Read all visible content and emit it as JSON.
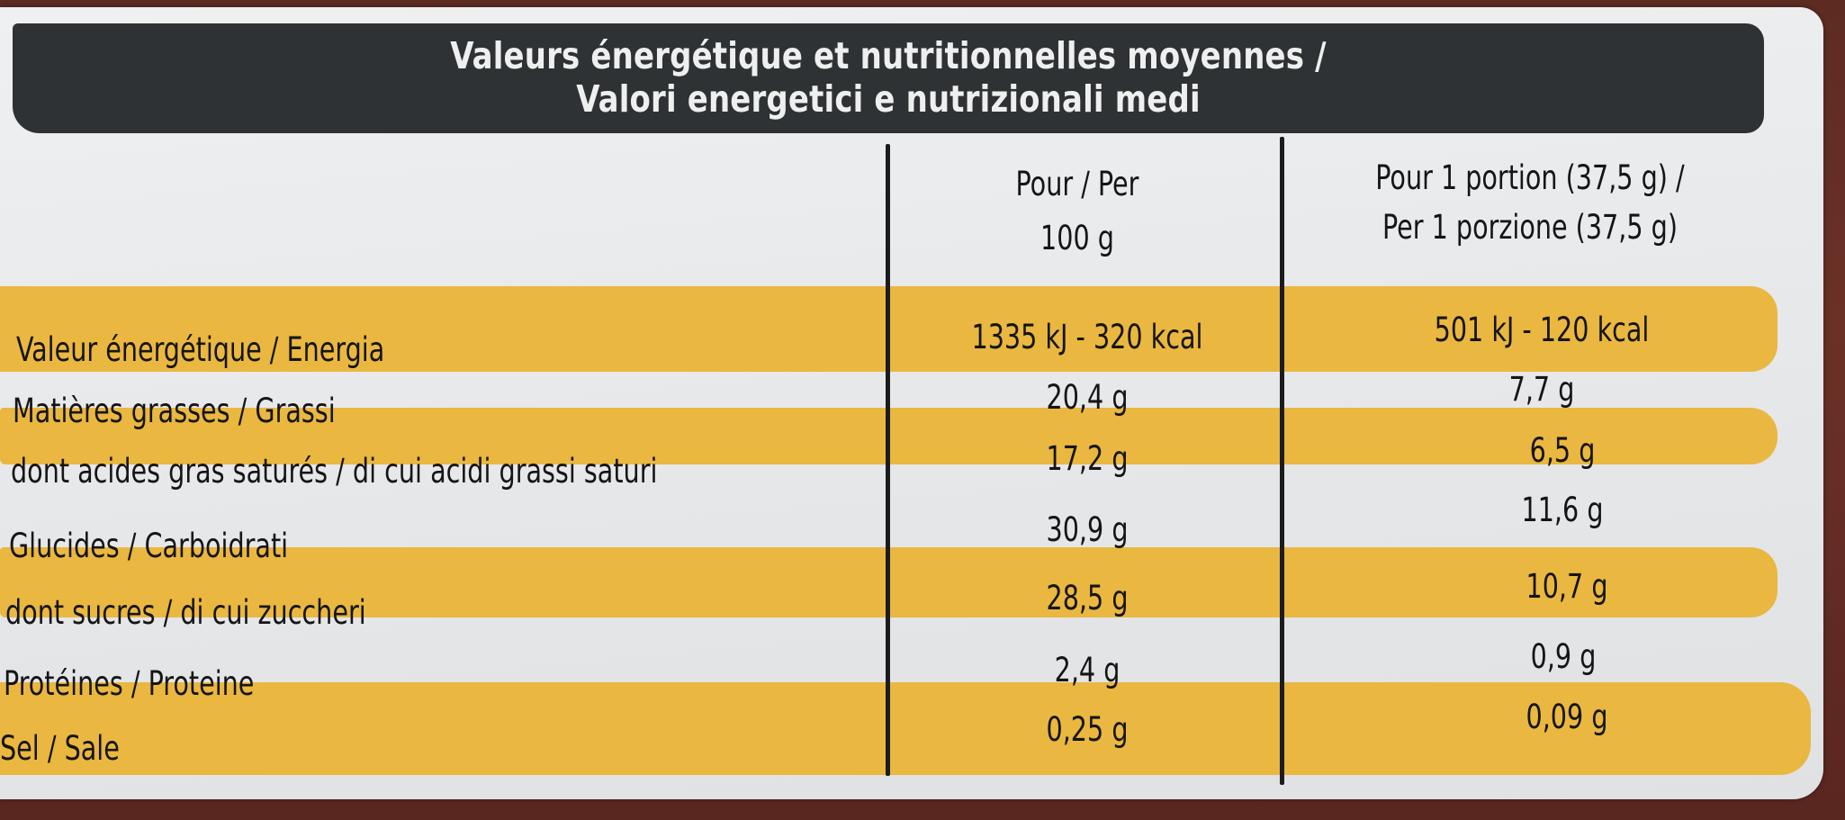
{
  "title": {
    "line1": "Valeurs énergétique et nutritionnelles moyennes /",
    "line2": "Valori energetici e nutrizionali medi"
  },
  "columns": {
    "per100_line1": "Pour / Per",
    "per100_line2": "100 g",
    "portion_line1": "Pour 1 portion (37,5 g) /",
    "portion_line2": "Per 1 porzione (37,5 g)"
  },
  "rows": [
    {
      "label": "Valeur énergétique / Energia",
      "per100": "1335 kJ - 320 kcal",
      "portion": "501 kJ - 120 kcal"
    },
    {
      "label": "Matières grasses / Grassi",
      "per100": "20,4 g",
      "portion": "7,7 g"
    },
    {
      "label": "dont acides gras saturés / di cui acidi grassi saturi",
      "per100": "17,2 g",
      "portion": "6,5 g"
    },
    {
      "label": "Glucides / Carboidrati",
      "per100": "30,9 g",
      "portion": "11,6 g"
    },
    {
      "label": "dont sucres / di cui zuccheri",
      "per100": "28,5 g",
      "portion": "10,7 g"
    },
    {
      "label": "Protéines / Proteine",
      "per100": "2,4 g",
      "portion": "0,9 g"
    },
    {
      "label": "Sel / Sale",
      "per100": "0,25 g",
      "portion": "0,09 g"
    }
  ],
  "colors": {
    "band": "#eab740",
    "title_bar": "#2f3234",
    "card": "#e8eaeb",
    "background": "#5b2a22"
  }
}
